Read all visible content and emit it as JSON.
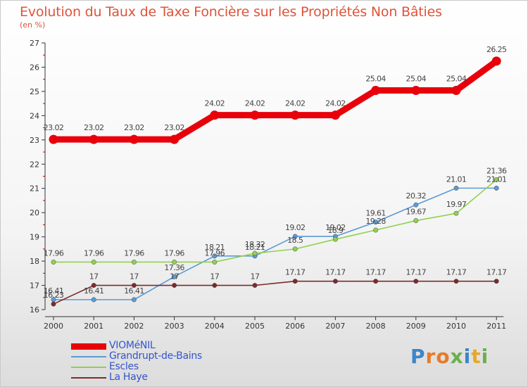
{
  "header": {
    "title": "Evolution du Taux de Taxe Foncière sur les Propriétés Non Bâties",
    "unit": "(en %)"
  },
  "brand": {
    "letters": [
      {
        "ch": "P",
        "color": "#3b86c8"
      },
      {
        "ch": "r",
        "color": "#e77b28"
      },
      {
        "ch": "o",
        "color": "#e77b28"
      },
      {
        "ch": "x",
        "color": "#6ab04c"
      },
      {
        "ch": "i",
        "color": "#3b86c8"
      },
      {
        "ch": "t",
        "color": "#e7a828"
      },
      {
        "ch": "i",
        "color": "#6ab04c"
      }
    ]
  },
  "chart_data": {
    "type": "line",
    "title": "Evolution du Taux de Taxe Foncière sur les Propriétés Non Bâties",
    "ylabel": "(en %)",
    "x": [
      "2000",
      "2001",
      "2002",
      "2003",
      "2004",
      "2005",
      "2006",
      "2007",
      "2008",
      "2009",
      "2010",
      "2011"
    ],
    "ylim": [
      16,
      27
    ],
    "yticks": [
      "16",
      "17",
      "18",
      "19",
      "20",
      "21",
      "22",
      "23",
      "24",
      "25",
      "26",
      "27"
    ],
    "legend_position": "bottom-left",
    "grid": false,
    "series": [
      {
        "name": "VIOMéNIL",
        "color": "#e8000b",
        "labels": [
          "23.02",
          "23.02",
          "23.02",
          "23.02",
          "24.02",
          "24.02",
          "24.02",
          "24.02",
          "25.04",
          "25.04",
          "25.04",
          "26.25"
        ],
        "values": [
          23.02,
          23.02,
          23.02,
          23.02,
          24.02,
          24.02,
          24.02,
          24.02,
          25.04,
          25.04,
          25.04,
          26.25
        ]
      },
      {
        "name": "Grandrupt-de-Bains",
        "color": "#5b9bd5",
        "labels": [
          "16.41",
          "16.41",
          "16.41",
          "17.36",
          "18.21",
          "18.21",
          "19.02",
          "19.02",
          "19.61",
          "20.32",
          "21.01",
          "21.01"
        ],
        "values": [
          16.41,
          16.41,
          16.41,
          17.36,
          18.21,
          18.21,
          19.02,
          19.02,
          19.61,
          20.32,
          21.01,
          21.01
        ]
      },
      {
        "name": "Escles",
        "color": "#92d050",
        "labels": [
          "17.96",
          "17.96",
          "17.96",
          "17.96",
          "17.96",
          "18.32",
          "18.5",
          "18.9",
          "19.28",
          "19.67",
          "19.97",
          "21.36"
        ],
        "values": [
          17.96,
          17.96,
          17.96,
          17.96,
          17.96,
          18.32,
          18.5,
          18.9,
          19.28,
          19.67,
          19.97,
          21.36
        ]
      },
      {
        "name": "La Haye",
        "color": "#7b2b2b",
        "labels": [
          "16.23",
          "17",
          "17",
          "17",
          "17",
          "17",
          "17.17",
          "17.17",
          "17.17",
          "17.17",
          "17.17",
          "17.17"
        ],
        "values": [
          16.23,
          17,
          17,
          17,
          17,
          17,
          17.17,
          17.17,
          17.17,
          17.17,
          17.17,
          17.17
        ]
      }
    ]
  }
}
